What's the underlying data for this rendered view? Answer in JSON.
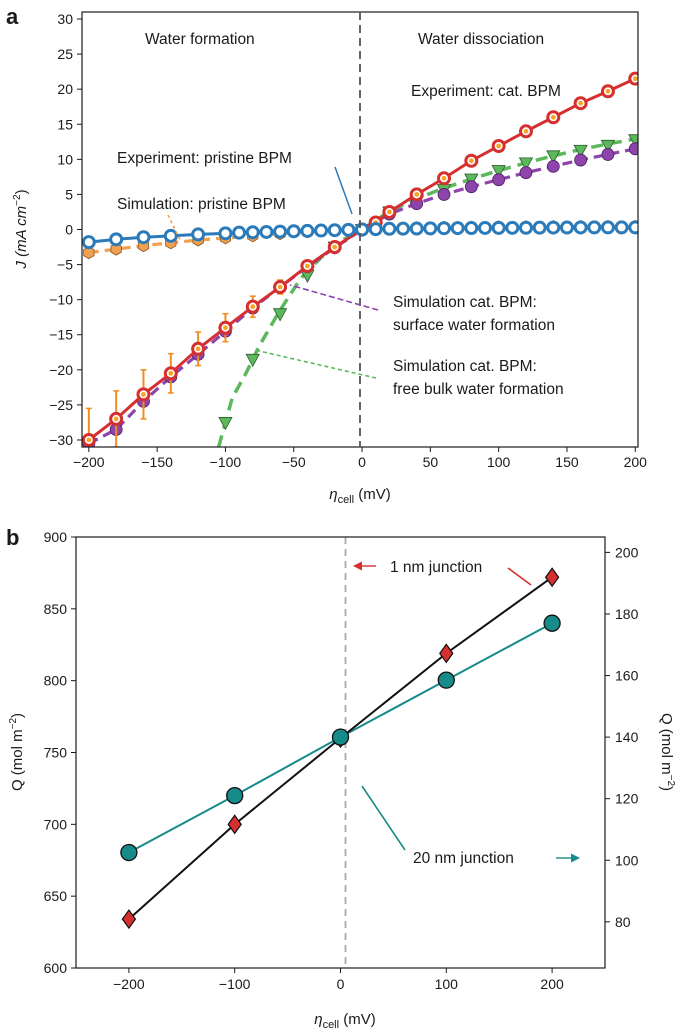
{
  "chart_data": [
    {
      "panel": "a",
      "type": "line",
      "xlabel_symbol": "η",
      "xlabel_sub": "cell",
      "xlabel_unit": " (mV)",
      "ylabel_main": "J (mA cm",
      "ylabel_sup": "−2",
      "ylabel_end": ")",
      "xlim": [
        -205,
        202
      ],
      "ylim": [
        -31,
        31
      ],
      "xticks": [
        -200,
        -150,
        -100,
        -50,
        0,
        50,
        100,
        150,
        200
      ],
      "xtick_labels": [
        "−200",
        "−150",
        "−100",
        "−50",
        "0",
        "50",
        "100",
        "150",
        "200"
      ],
      "yticks": [
        -30,
        -25,
        -20,
        -15,
        -10,
        -5,
        0,
        5,
        10,
        15,
        20,
        25,
        30
      ],
      "ytick_labels": [
        "−30",
        "−25",
        "−20",
        "−15",
        "−10",
        "−5",
        "0",
        "5",
        "10",
        "15",
        "20",
        "25",
        "30"
      ],
      "region_labels": [
        "Water formation",
        "Water dissociation"
      ],
      "series": [
        {
          "name": "Simulation cat. BPM: free bulk water formation",
          "style": "dashed",
          "color": "#5cb85c",
          "marker": "triangle-down",
          "curve_x": [
            -105,
            -95,
            -85,
            -75,
            -60,
            -45,
            -30,
            -20,
            -10,
            0,
            10,
            20,
            40,
            60,
            80,
            100,
            120,
            140,
            160,
            180,
            200
          ],
          "curve_y": [
            -31,
            -24,
            -20.5,
            -16.5,
            -11.5,
            -7,
            -4,
            -2.3,
            -1,
            0,
            1.3,
            2.6,
            4.4,
            5.9,
            7.2,
            8.4,
            9.5,
            10.5,
            11.4,
            12.2,
            12.9
          ],
          "x": [
            -100,
            -80,
            -60,
            -40,
            -20,
            0,
            20,
            40,
            60,
            80,
            100,
            120,
            140,
            160,
            180,
            200
          ],
          "y": [
            -27.5,
            -18.5,
            -12,
            -6.5,
            -2.5,
            0,
            2.5,
            4,
            5.7,
            7.2,
            8.4,
            9.5,
            10.5,
            11.3,
            12,
            12.8
          ]
        },
        {
          "name": "Simulation cat. BPM: surface water formation",
          "style": "dashed",
          "color": "#8e44ad",
          "marker": "circle",
          "x": [
            -200,
            -180,
            -160,
            -140,
            -120,
            -100,
            -80,
            -60,
            -40,
            -20,
            0,
            20,
            40,
            60,
            80,
            100,
            120,
            140,
            160,
            180,
            200
          ],
          "y": [
            -30.5,
            -28.5,
            -24.5,
            -21,
            -17.8,
            -14.5,
            -11.2,
            -8.2,
            -5.3,
            -2.6,
            0,
            2.2,
            3.7,
            5,
            6.1,
            7.1,
            8.1,
            9,
            9.9,
            10.7,
            11.5
          ]
        },
        {
          "name": "Experiment: cat. BPM",
          "style": "solid",
          "color": "#d62f2f",
          "marker": "ring-orange",
          "x": [
            -200,
            -180,
            -160,
            -140,
            -120,
            -100,
            -80,
            -60,
            -40,
            -20,
            0,
            10,
            20,
            40,
            60,
            80,
            100,
            120,
            140,
            160,
            180,
            200
          ],
          "y": [
            -30,
            -27,
            -23.5,
            -20.5,
            -17,
            -14,
            -11,
            -8.2,
            -5.2,
            -2.5,
            0,
            1,
            2.5,
            5,
            7.3,
            9.8,
            11.9,
            14,
            16,
            18,
            19.7,
            21.5
          ],
          "err": [
            4.5,
            4,
            3.5,
            2.8,
            2.4,
            2,
            1.5,
            1,
            0.6,
            0.3,
            0,
            0,
            0,
            0,
            0,
            0,
            0,
            0,
            0,
            0,
            0,
            0
          ]
        },
        {
          "name": "Simulation: pristine BPM",
          "style": "dashed",
          "color": "#f0a050",
          "marker": "hexagon",
          "x": [
            -200,
            -180,
            -160,
            -140,
            -120,
            -100,
            -80,
            -60,
            -40,
            -20,
            0,
            20,
            40,
            60,
            80,
            100,
            120,
            140,
            160,
            180,
            200
          ],
          "y": [
            -3.3,
            -2.8,
            -2.3,
            -1.9,
            -1.5,
            -1.2,
            -0.9,
            -0.6,
            -0.35,
            -0.15,
            0,
            0.15,
            0.25,
            0.3,
            0.35,
            0.38,
            0.4,
            0.42,
            0.43,
            0.44,
            0.45
          ]
        },
        {
          "name": "Experiment: pristine BPM",
          "style": "solid",
          "color": "#2b7bba",
          "marker": "ring-blue",
          "x": [
            -200,
            -180,
            -160,
            -140,
            -120,
            -100,
            -90,
            -80,
            -70,
            -60,
            -50,
            -40,
            -30,
            -20,
            -10,
            0,
            10,
            20,
            30,
            40,
            50,
            60,
            70,
            80,
            90,
            100,
            110,
            120,
            130,
            140,
            150,
            160,
            170,
            180,
            190,
            200
          ],
          "y": [
            -1.8,
            -1.4,
            -1.1,
            -0.9,
            -0.7,
            -0.55,
            -0.45,
            -0.4,
            -0.35,
            -0.3,
            -0.25,
            -0.2,
            -0.15,
            -0.1,
            -0.05,
            0,
            0.05,
            0.1,
            0.12,
            0.14,
            0.16,
            0.18,
            0.2,
            0.21,
            0.22,
            0.23,
            0.24,
            0.25,
            0.26,
            0.27,
            0.28,
            0.29,
            0.3,
            0.3,
            0.3,
            0.3
          ]
        }
      ],
      "annotations": [
        "Experiment: cat. BPM",
        "Experiment: pristine BPM",
        "Simulation: pristine BPM",
        "Simulation cat. BPM:",
        "surface water formation",
        "Simulation cat. BPM:",
        "free bulk water formation"
      ]
    },
    {
      "panel": "b",
      "type": "line",
      "xlabel_symbol": "η",
      "xlabel_sub": "cell",
      "xlabel_unit": " (mV)",
      "ylabel_left": "Q (mol m",
      "ylabel_right": "Q (mol m",
      "ylabel_sup": "−2",
      "ylabel_end": ")",
      "xlim": [
        -250,
        250
      ],
      "ylim_left": [
        600,
        900
      ],
      "ylim_right": [
        65,
        205
      ],
      "xticks": [
        -200,
        -100,
        0,
        100,
        200
      ],
      "xtick_labels": [
        "−200",
        "−100",
        "0",
        "100",
        "200"
      ],
      "yticks_left": [
        600,
        650,
        700,
        750,
        800,
        850,
        900
      ],
      "yticks_right": [
        80,
        100,
        120,
        140,
        160,
        180,
        200
      ],
      "series": [
        {
          "name": "1 nm junction",
          "axis": "left",
          "color": "#d62f2f",
          "marker": "diamond",
          "x": [
            -200,
            -100,
            0,
            100,
            200
          ],
          "y": [
            634,
            700,
            760,
            819,
            872
          ]
        },
        {
          "name": "20 nm junction",
          "axis": "right",
          "color": "#178a8a",
          "marker": "circle",
          "x": [
            -200,
            -100,
            0,
            100,
            200
          ],
          "y": [
            102.5,
            121,
            140,
            158.5,
            177
          ]
        }
      ],
      "annotations": [
        "1 nm junction",
        "20 nm junction"
      ]
    }
  ]
}
